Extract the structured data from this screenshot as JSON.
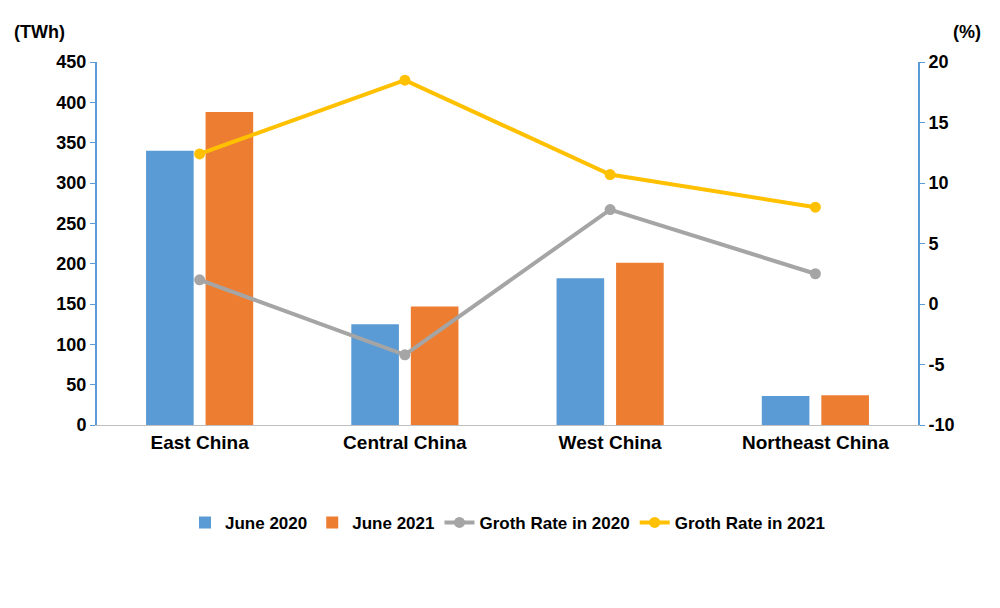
{
  "chart_data": {
    "type": "bar",
    "categories": [
      "East China",
      "Central China",
      "West China",
      "Northeast China"
    ],
    "ylabel": "(TWh)",
    "y2label": "(%)",
    "ylim": [
      0,
      450
    ],
    "yticks": [
      0,
      50,
      100,
      150,
      200,
      250,
      300,
      350,
      400,
      450
    ],
    "y2lim": [
      -10,
      20
    ],
    "y2ticks": [
      -10,
      -5,
      0,
      5,
      10,
      15,
      20
    ],
    "grid": false,
    "legend": "bottom",
    "series": [
      {
        "name": "June 2020",
        "type": "bar",
        "color": "#5b9bd5",
        "values": [
          340,
          125,
          182,
          36
        ]
      },
      {
        "name": "June 2021",
        "type": "bar",
        "color": "#ed7d31",
        "values": [
          388,
          147,
          201,
          37
        ]
      },
      {
        "name": "Groth Rate in 2020",
        "type": "line",
        "axis": "y2",
        "marker": "circle",
        "color": "#a5a5a5",
        "values": [
          2.0,
          -4.2,
          7.8,
          2.5
        ]
      },
      {
        "name": "Groth Rate in 2021",
        "type": "line",
        "axis": "y2",
        "marker": "circle",
        "color": "#ffc000",
        "values": [
          12.4,
          18.5,
          10.7,
          8.0
        ]
      }
    ]
  }
}
